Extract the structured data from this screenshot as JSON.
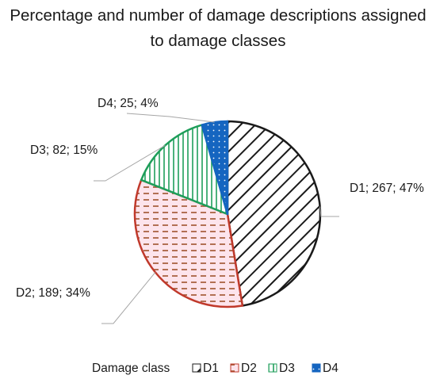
{
  "chart_data": {
    "type": "pie",
    "title_lines": [
      "Percentage and number of damage descriptions assigned",
      "to damage classes"
    ],
    "slices": [
      {
        "name": "D1",
        "value": 267,
        "percent": 47,
        "label": "D1; 267; 47%",
        "color": "#1a1a1a",
        "fill": "#ffffff",
        "pattern": "diagonal-hatch"
      },
      {
        "name": "D2",
        "value": 189,
        "percent": 34,
        "label": "D2; 189; 34%",
        "color": "#c0392b",
        "fill": "#fde4ec",
        "pattern": "dashed-horizontal"
      },
      {
        "name": "D3",
        "value": 82,
        "percent": 15,
        "label": "D3; 82; 15%",
        "color": "#1e9e5a",
        "fill": "#ffffff",
        "pattern": "vertical-lines"
      },
      {
        "name": "D4",
        "value": 25,
        "percent": 4,
        "label": "D4; 25; 4%",
        "color": "#1565c0",
        "fill": "#1565c0",
        "pattern": "dots"
      }
    ],
    "legend": {
      "title": "Damage class",
      "placement": "bottom",
      "entries": [
        "D1",
        "D2",
        "D3",
        "D4"
      ]
    }
  }
}
